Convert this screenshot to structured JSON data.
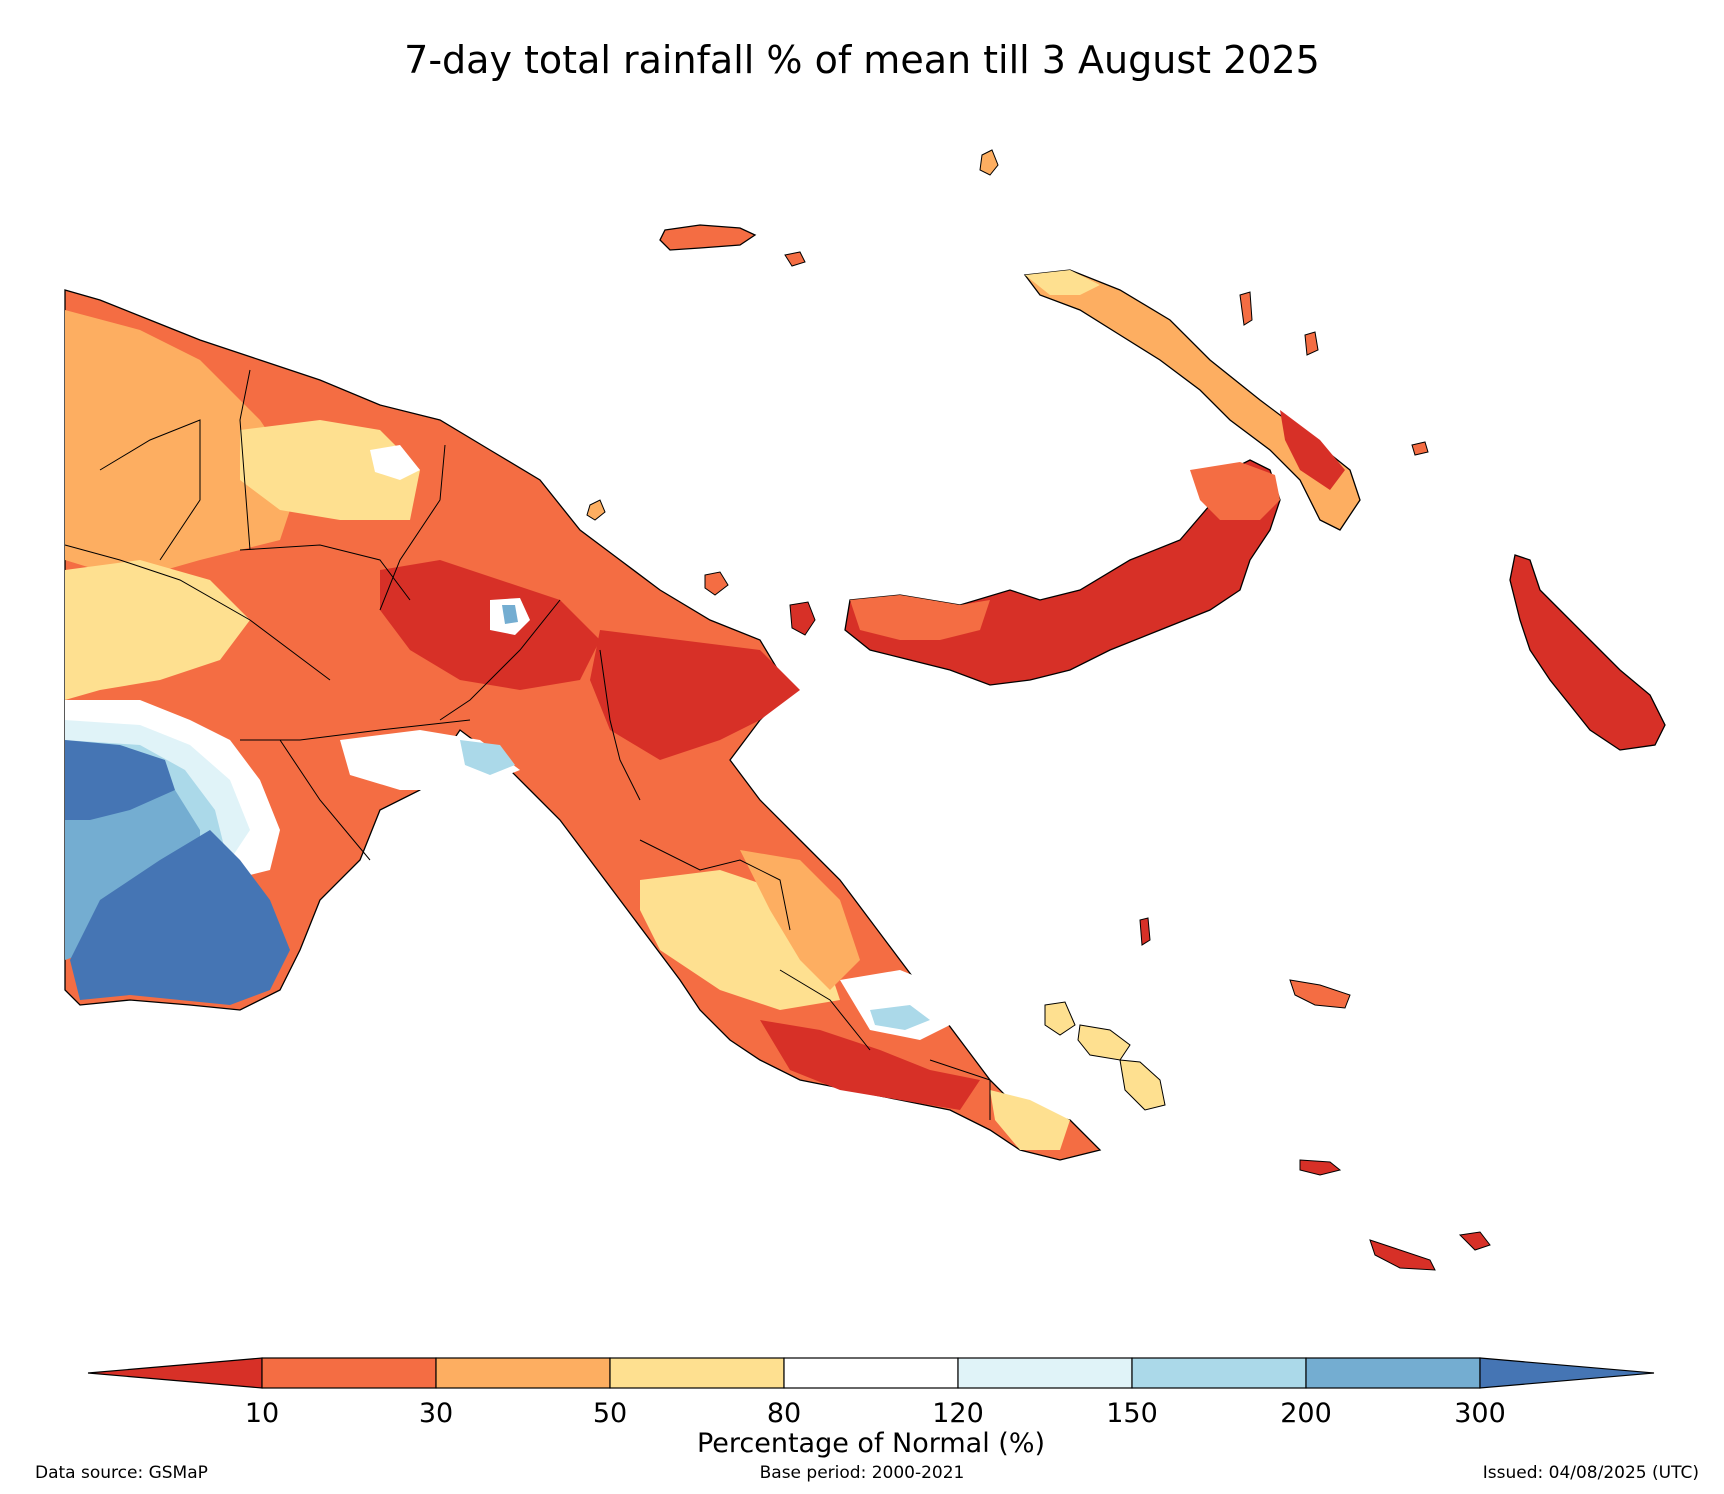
{
  "title": "7-day total rainfall % of mean till 3 August 2025",
  "colorbar": {
    "label": "Percentage of Normal (%)",
    "ticks": [
      "10",
      "30",
      "50",
      "80",
      "120",
      "150",
      "200",
      "300"
    ],
    "colors": {
      "lt10": "#d73027",
      "10-30": "#f46d43",
      "30-50": "#fdae61",
      "50-80": "#fee090",
      "80-120": "#ffffff",
      "120-150": "#e0f3f8",
      "150-200": "#abd9e9",
      "200-300": "#74add1",
      "gt300": "#4575b4"
    }
  },
  "footer": {
    "source": "Data source: GSMaP",
    "base": "Base period: 2000-2021",
    "issued": "Issued: 04/08/2025 (UTC)"
  },
  "regions": {
    "western_south": "200-300",
    "southwest_coast": "gt300",
    "highlands": "10-30",
    "northern_highlands": "lt10",
    "morobe_oro": "lt10",
    "new_britain": "lt10",
    "new_ireland_north": "30-50",
    "bougainville": "lt10",
    "manus": "10-30",
    "milne_bay_islands": "50-80"
  }
}
